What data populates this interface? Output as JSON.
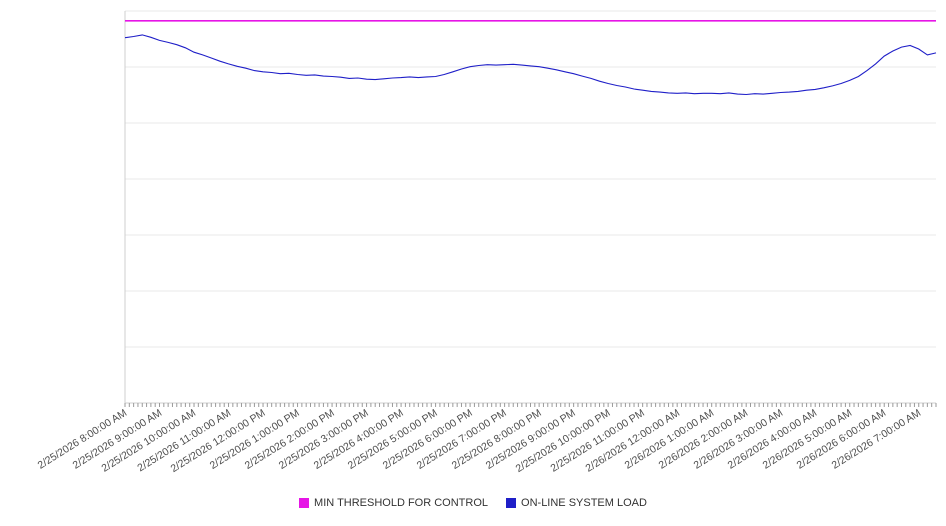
{
  "chart_data": {
    "type": "line",
    "title": "",
    "xlabel": "",
    "ylabel": "",
    "ylim": [
      0,
      100
    ],
    "y_divisions": 7,
    "grid": "horizontal",
    "y_tick_labels_visible": false,
    "legend_position": "bottom",
    "x_start": "2/25/2026 8:00:00 AM",
    "x_interval_minutes": 15,
    "x_tick_labels": [
      "2/25/2026 8:00:00 AM",
      "2/25/2026 9:00:00 AM",
      "2/25/2026 10:00:00 AM",
      "2/25/2026 11:00:00 AM",
      "2/25/2026 12:00:00 PM",
      "2/25/2026 1:00:00 PM",
      "2/25/2026 2:00:00 PM",
      "2/25/2026 3:00:00 PM",
      "2/25/2026 4:00:00 PM",
      "2/25/2026 5:00:00 PM",
      "2/25/2026 6:00:00 PM",
      "2/25/2026 7:00:00 PM",
      "2/25/2026 8:00:00 PM",
      "2/25/2026 9:00:00 PM",
      "2/25/2026 10:00:00 PM",
      "2/25/2026 11:00:00 PM",
      "2/26/2026 12:00:00 AM",
      "2/26/2026 1:00:00 AM",
      "2/26/2026 2:00:00 AM",
      "2/26/2026 3:00:00 AM",
      "2/26/2026 4:00:00 AM",
      "2/26/2026 5:00:00 AM",
      "2/26/2026 6:00:00 AM",
      "2/26/2026 7:00:00 AM"
    ],
    "series": [
      {
        "name": "MIN THRESHOLD FOR CONTROL",
        "color": "#e615e6",
        "type": "constant",
        "value": 97.5
      },
      {
        "name": "ON-LINE SYSTEM LOAD",
        "color": "#1f1fc8",
        "type": "line",
        "values": [
          93.2,
          93.5,
          93.9,
          93.3,
          92.5,
          92.0,
          91.4,
          90.6,
          89.5,
          88.8,
          88.0,
          87.2,
          86.5,
          85.9,
          85.4,
          84.8,
          84.5,
          84.3,
          84.0,
          84.1,
          83.8,
          83.6,
          83.7,
          83.4,
          83.3,
          83.1,
          82.8,
          82.9,
          82.6,
          82.5,
          82.7,
          82.9,
          83.0,
          83.2,
          83.0,
          83.2,
          83.3,
          83.8,
          84.5,
          85.2,
          85.8,
          86.1,
          86.3,
          86.2,
          86.3,
          86.4,
          86.2,
          86.0,
          85.8,
          85.4,
          85.0,
          84.5,
          84.0,
          83.4,
          82.8,
          82.1,
          81.5,
          81.0,
          80.6,
          80.1,
          79.8,
          79.5,
          79.3,
          79.1,
          79.0,
          79.1,
          78.9,
          79.0,
          79.0,
          78.9,
          79.1,
          78.8,
          78.7,
          78.9,
          78.8,
          79.0,
          79.2,
          79.3,
          79.5,
          79.8,
          80.0,
          80.4,
          80.9,
          81.5,
          82.3,
          83.3,
          84.8,
          86.5,
          88.5,
          89.8,
          90.8,
          91.2,
          90.3,
          88.8,
          89.3
        ]
      }
    ]
  }
}
